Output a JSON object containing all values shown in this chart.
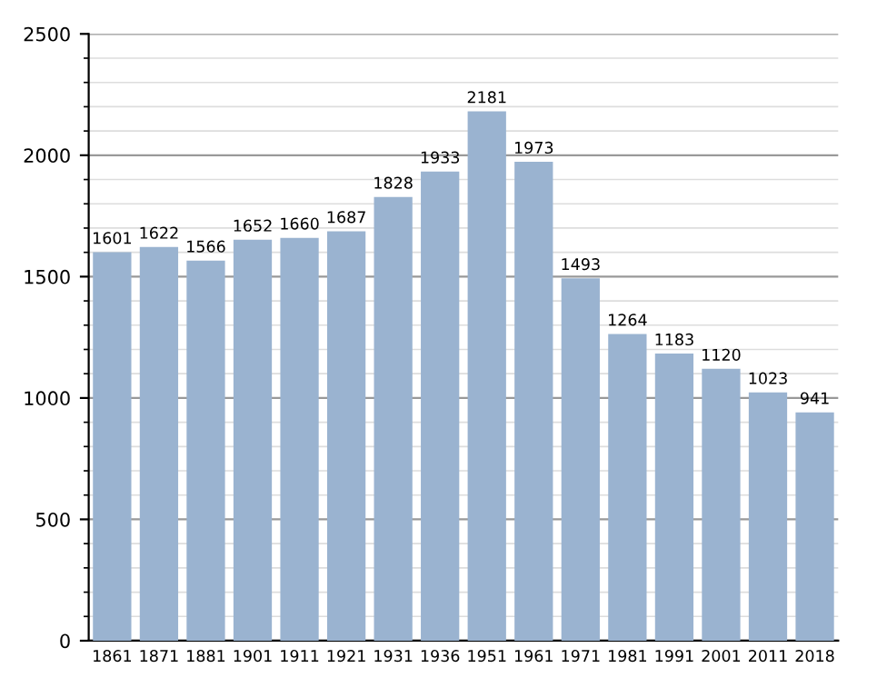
{
  "chart_data": {
    "type": "bar",
    "categories": [
      "1861",
      "1871",
      "1881",
      "1901",
      "1911",
      "1921",
      "1931",
      "1936",
      "1951",
      "1961",
      "1971",
      "1981",
      "1991",
      "2001",
      "2011",
      "2018"
    ],
    "values": [
      1601,
      1622,
      1566,
      1652,
      1660,
      1687,
      1828,
      1933,
      2181,
      1973,
      1493,
      1264,
      1183,
      1120,
      1023,
      941
    ],
    "color": "#9ab3d0",
    "ylim": [
      0,
      2500
    ],
    "yticks": [
      0,
      500,
      1000,
      1500,
      2000,
      2500
    ],
    "grid": "y",
    "data_labels": true
  }
}
